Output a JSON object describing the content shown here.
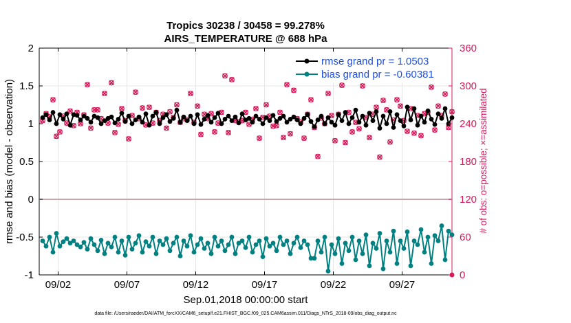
{
  "chart_data": {
    "type": "line",
    "title": "Tropics 30238 / 30458 = 99.278%",
    "subtitle": "AIRS_TEMPERATURE @ 688 hPa",
    "xlabel": "Sep.01,2018 00:00:00 start",
    "ylabel": "rmse and bias (model - observation)",
    "ylabel_right": "# of obs: o=possible; ×=assimilated",
    "footer": "data file: /Users/raeder/DAI/ATM_forcXX/CAM6_setup/f.e21.FHIST_BGC.f09_025.CAM6assim.011/Diags_NTrS_2018-09/obs_diag_output.nc",
    "xlim": [
      0.625,
      30.625
    ],
    "ylim": [
      -1,
      2
    ],
    "ylim_right": [
      0,
      360
    ],
    "x_tick_values": [
      2,
      7,
      12,
      17,
      22,
      27
    ],
    "x_tick_labels": [
      "09/02",
      "09/07",
      "09/12",
      "09/17",
      "09/22",
      "09/27"
    ],
    "y_ticks": [
      -1,
      -0.5,
      0,
      0.5,
      1,
      1.5,
      2
    ],
    "y_tick_labels": [
      "-1",
      "-0.5",
      "0",
      "0.5",
      "1",
      "1.5",
      "2"
    ],
    "y_right_ticks": [
      0,
      60,
      120,
      180,
      240,
      300,
      360
    ],
    "y_right_tick_labels": [
      "0",
      "60",
      "120",
      "180",
      "240",
      "300",
      "360"
    ],
    "zero_line": 0,
    "x_start": 0.875,
    "x_step": 0.25,
    "series": [
      {
        "name": "rmse grand pr = 1.0503",
        "axis": "left",
        "color": "#000000",
        "values": [
          1.08,
          1.12,
          1.05,
          1.15,
          1.0,
          1.12,
          1.06,
          1.13,
          0.98,
          1.12,
          1.11,
          1.05,
          1.1,
          1.07,
          1.02,
          1.1,
          1.08,
          1.0,
          1.04,
          1.07,
          1.09,
          1.01,
          1.06,
          1.14,
          1.03,
          1.1,
          1.0,
          1.05,
          1.09,
          1.02,
          1.13,
          0.98,
          1.1,
          1.15,
          1.0,
          1.08,
          1.12,
          1.03,
          1.07,
          1.18,
          1.02,
          1.09,
          1.04,
          1.1,
          1.0,
          1.12,
          0.99,
          1.06,
          1.11,
          1.02,
          1.08,
          1.14,
          1.0,
          1.06,
          1.1,
          1.04,
          1.09,
          1.01,
          1.13,
          1.05,
          1.07,
          1.02,
          1.1,
          1.06,
          1.0,
          1.08,
          1.04,
          1.11,
          1.03,
          1.07,
          1.1,
          1.02,
          1.06,
          1.09,
          1.05,
          1.0,
          1.07,
          1.12,
          1.03,
          0.96,
          1.05,
          1.1,
          1.0,
          1.08,
          1.02,
          0.98,
          1.12,
          1.04,
          1.15,
          1.0,
          1.08,
          1.18,
          1.02,
          1.1,
          0.98,
          1.14,
          1.04,
          1.16,
          0.94,
          1.1,
          1.0,
          1.16,
          0.95,
          1.12,
          1.04,
          0.97,
          1.22,
          1.05,
          1.2,
          0.98,
          1.1,
          1.02,
          1.17,
          1.06,
          0.99,
          1.13,
          1.07,
          1.2,
          1.0,
          1.08
        ]
      },
      {
        "name": "bias grand pr = -0.60381",
        "axis": "left",
        "color": "#008080",
        "values": [
          -0.55,
          -0.62,
          -0.5,
          -0.7,
          -0.45,
          -0.62,
          -0.56,
          -0.52,
          -0.58,
          -0.55,
          -0.6,
          -0.63,
          -0.57,
          -0.66,
          -0.52,
          -0.6,
          -0.68,
          -0.54,
          -0.72,
          -0.58,
          -0.63,
          -0.5,
          -0.7,
          -0.55,
          -0.74,
          -0.5,
          -0.66,
          -0.58,
          -0.48,
          -0.7,
          -0.56,
          -0.62,
          -0.5,
          -0.72,
          -0.55,
          -0.6,
          -0.52,
          -0.68,
          -0.58,
          -0.5,
          -0.75,
          -0.55,
          -0.62,
          -0.48,
          -0.7,
          -0.6,
          -0.52,
          -0.65,
          -0.58,
          -0.72,
          -0.5,
          -0.62,
          -0.55,
          -0.68,
          -0.6,
          -0.5,
          -0.72,
          -0.58,
          -0.55,
          -0.64,
          -0.5,
          -0.7,
          -0.6,
          -0.55,
          -0.76,
          -0.52,
          -0.62,
          -0.58,
          -0.68,
          -0.5,
          -0.6,
          -0.55,
          -0.72,
          -0.58,
          -0.5,
          -0.64,
          -0.55,
          -0.6,
          -0.78,
          -0.78,
          -0.55,
          -0.7,
          -0.5,
          -0.95,
          -0.6,
          -0.72,
          -0.52,
          -0.85,
          -0.58,
          -0.68,
          -0.5,
          -0.8,
          -0.55,
          -0.72,
          -0.47,
          -0.88,
          -0.58,
          -0.65,
          -0.45,
          -0.92,
          -0.55,
          -0.7,
          -0.42,
          -0.85,
          -0.55,
          -0.65,
          -0.43,
          -0.88,
          -0.55,
          -0.6,
          -0.4,
          -0.7,
          -0.5,
          -0.85,
          -0.48,
          -0.55,
          -0.35,
          -0.8,
          -0.42,
          -0.47
        ]
      },
      {
        "name": "obs possible",
        "axis": "right",
        "marker": "o",
        "color": "#d6195a",
        "values": [
          245,
          256,
          251,
          278,
          220,
          227,
          252,
          241,
          260,
          237,
          258,
          240,
          254,
          302,
          233,
          262,
          262,
          248,
          288,
          241,
          305,
          226,
          239,
          264,
          245,
          216,
          253,
          290,
          248,
          265,
          238,
          266,
          241,
          258,
          245,
          255,
          233,
          259,
          250,
          270,
          242,
          248,
          246,
          288,
          242,
          268,
          223,
          255,
          248,
          256,
          227,
          241,
          258,
          316,
          226,
          310,
          245,
          243,
          245,
          258,
          239,
          247,
          264,
          217,
          250,
          270,
          252,
          236,
          237,
          258,
          218,
          302,
          224,
          293,
          248,
          243,
          217,
          255,
          278,
          234,
          188,
          249,
          240,
          288,
          253,
          213,
          255,
          301,
          210,
          258,
          227,
          242,
          232,
          300,
          250,
          218,
          255,
          266,
          187,
          277,
          262,
          211,
          246,
          278,
          268,
          245,
          228,
          264,
          225,
          253,
          221,
          256,
          258,
          298,
          230,
          268,
          253,
          287,
          234,
          259
        ]
      },
      {
        "name": "obs assimilated",
        "axis": "right",
        "marker": "x",
        "color": "#d6195a",
        "values": [
          245,
          256,
          251,
          278,
          220,
          227,
          252,
          241,
          260,
          237,
          258,
          240,
          254,
          302,
          233,
          262,
          262,
          248,
          288,
          241,
          305,
          226,
          239,
          264,
          245,
          216,
          253,
          290,
          248,
          265,
          238,
          266,
          241,
          258,
          245,
          255,
          233,
          259,
          250,
          270,
          242,
          248,
          246,
          288,
          242,
          268,
          223,
          255,
          248,
          256,
          227,
          241,
          258,
          316,
          226,
          310,
          245,
          243,
          245,
          258,
          239,
          247,
          264,
          217,
          250,
          270,
          252,
          236,
          237,
          258,
          218,
          302,
          224,
          293,
          248,
          243,
          217,
          255,
          278,
          234,
          188,
          249,
          240,
          288,
          253,
          213,
          255,
          301,
          210,
          258,
          227,
          242,
          232,
          300,
          250,
          218,
          255,
          266,
          187,
          277,
          262,
          211,
          246,
          278,
          268,
          245,
          228,
          264,
          225,
          253,
          221,
          256,
          258,
          298,
          230,
          268,
          253,
          287,
          234,
          259
        ]
      }
    ],
    "legend": [
      {
        "label": "rmse grand pr = 1.0503",
        "color": "#000000"
      },
      {
        "label": "bias grand pr = -0.60381",
        "color": "#008080"
      }
    ],
    "legend_position": "top-right",
    "colors": {
      "left_axis": "#000000",
      "right_axis": "#d6195a",
      "zero_line": "#c8a8a8",
      "grid": "#e6e6e6",
      "legend_text": "#1f4fe0"
    }
  }
}
